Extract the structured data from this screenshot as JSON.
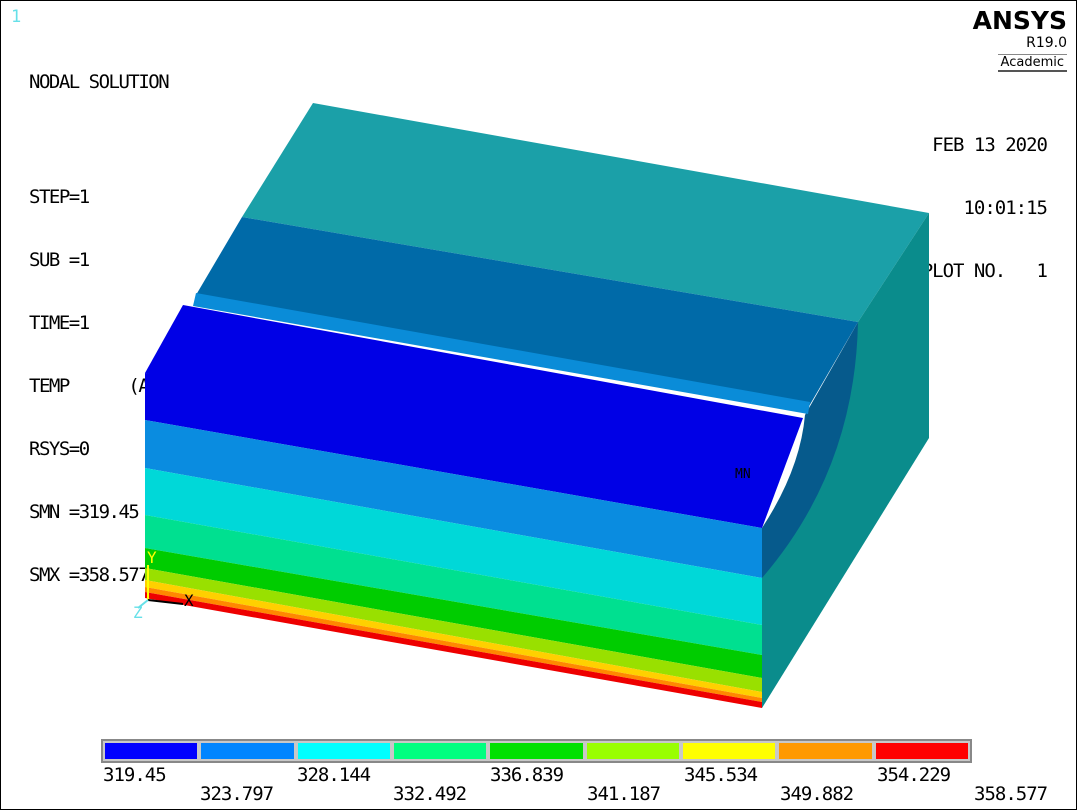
{
  "window_number": "1",
  "info": {
    "title": "NODAL SOLUTION",
    "lines": [
      "STEP=1",
      "SUB =1",
      "TIME=1",
      "TEMP      (AVG)",
      "RSYS=0",
      "SMN =319.45",
      "SMX =358.577"
    ]
  },
  "logo": {
    "name": "ANSYS",
    "version": "R19.0",
    "license": "Academic"
  },
  "meta": {
    "date": "FEB 13 2020",
    "time": "10:01:15",
    "plot": "PLOT NO.   1"
  },
  "markers": {
    "min_label": "MN"
  },
  "triad": {
    "y": "Y",
    "x": "X",
    "z": "Z"
  },
  "contour_legend": {
    "colors": [
      "#0000ff",
      "#0085ff",
      "#00ffff",
      "#00ff80",
      "#00e000",
      "#99ff00",
      "#ffff00",
      "#ff9900",
      "#ff0000"
    ],
    "ticks": [
      "319.45",
      "323.797",
      "328.144",
      "332.492",
      "336.839",
      "341.187",
      "345.534",
      "349.882",
      "354.229",
      "358.577"
    ]
  },
  "model_colors": {
    "top_face": "#1ba0a8",
    "right_face": "#0a8c8c",
    "channel_back": "#006aa8",
    "rib": "#0a8cd8",
    "front_bands": [
      "#0000e6",
      "#0a8ce0",
      "#00d8d8",
      "#00e090",
      "#00cc00",
      "#99e000",
      "#ffd000",
      "#ff8800",
      "#ee0000"
    ]
  }
}
